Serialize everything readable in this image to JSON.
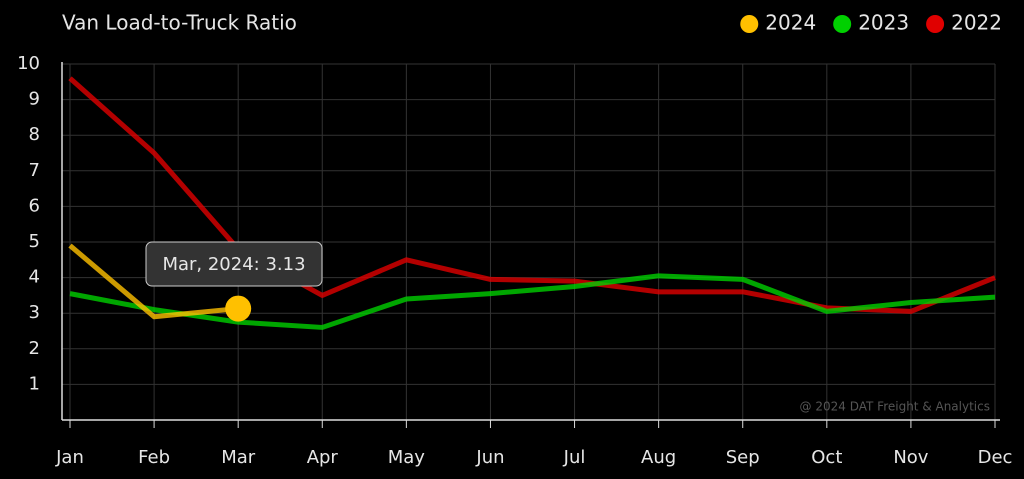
{
  "chart_data": {
    "type": "line",
    "title": "Van Load-to-Truck Ratio",
    "categories": [
      "Jan",
      "Feb",
      "Mar",
      "Apr",
      "May",
      "Jun",
      "Jul",
      "Aug",
      "Sep",
      "Oct",
      "Nov",
      "Dec"
    ],
    "series": [
      {
        "name": "2024",
        "color": "#ffc000",
        "values": [
          4.9,
          2.9,
          3.13,
          null,
          null,
          null,
          null,
          null,
          null,
          null,
          null,
          null
        ]
      },
      {
        "name": "2023",
        "color": "#00d000",
        "values": [
          3.55,
          3.1,
          2.75,
          2.6,
          3.4,
          3.55,
          3.75,
          4.05,
          3.95,
          3.05,
          3.3,
          3.45
        ]
      },
      {
        "name": "2022",
        "color": "#e00000",
        "values": [
          9.6,
          7.5,
          4.8,
          3.5,
          4.5,
          3.95,
          3.9,
          3.6,
          3.6,
          3.15,
          3.05,
          4.0
        ]
      }
    ],
    "ylim": [
      0,
      10
    ],
    "yticks": [
      1,
      2,
      3,
      4,
      5,
      6,
      7,
      8,
      9,
      10
    ],
    "grid": true,
    "legend": "top-right",
    "tooltip": "Mar, 2024: 3.13",
    "annotation": "@ 2024 DAT Freight & Analytics"
  }
}
